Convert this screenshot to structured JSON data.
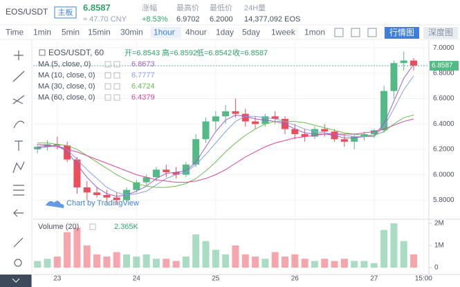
{
  "header": {
    "symbol": "EOS/USDT",
    "board": "主板",
    "price": "6.8587",
    "cny": "≈ 47.70 CNY",
    "stats": [
      {
        "label": "涨幅",
        "value": "+8.53%"
      },
      {
        "label": "最高价",
        "value": "6.9702"
      },
      {
        "label": "最低价",
        "value": "6.2000"
      },
      {
        "label": "24H量",
        "value": "14,377,092 EOS"
      }
    ]
  },
  "toolbar": {
    "intervals": [
      "Time",
      "1min",
      "5min",
      "15min",
      "30min",
      "1hour",
      "4hour",
      "1day",
      "5day",
      "1week",
      "1mon"
    ],
    "active": "1hour",
    "views": [
      "行情图",
      "深度图"
    ],
    "active_view": "行情图"
  },
  "chart_data": [
    {
      "type": "candlestick",
      "title": "EOS/USDT, 60",
      "info": [
        "开=6.8543",
        "高=6.8592",
        "低=6.8542",
        "收=6.8587"
      ],
      "watermark": "Chart by TradingView",
      "up_color": "#53b987",
      "down_color": "#eb4d5c",
      "x": [
        -6,
        -3,
        0,
        3,
        6,
        9,
        12,
        15,
        18,
        21,
        24,
        27,
        30,
        33,
        36,
        39,
        42,
        45,
        48,
        51,
        54,
        57,
        60,
        63,
        66,
        69,
        72,
        75,
        78,
        81,
        84,
        87,
        90,
        93,
        96,
        99,
        102,
        105,
        108
      ],
      "open": [
        6.2,
        6.22,
        6.24,
        6.23,
        6.12,
        5.9,
        5.86,
        5.84,
        5.82,
        5.8,
        5.88,
        5.94,
        5.98,
        6.04,
        6.02,
        6.0,
        6.08,
        6.28,
        6.42,
        6.46,
        6.5,
        6.48,
        6.42,
        6.4,
        6.46,
        6.44,
        6.36,
        6.32,
        6.3,
        6.36,
        6.34,
        6.28,
        6.26,
        6.3,
        6.32,
        6.35,
        6.66,
        6.88,
        6.9
      ],
      "high": [
        6.24,
        6.27,
        6.3,
        6.26,
        6.14,
        5.95,
        5.9,
        5.88,
        5.86,
        5.9,
        5.96,
        6.0,
        6.06,
        6.08,
        6.06,
        6.1,
        6.32,
        6.45,
        6.5,
        6.55,
        6.6,
        6.52,
        6.46,
        6.48,
        6.5,
        6.46,
        6.4,
        6.36,
        6.38,
        6.4,
        6.36,
        6.32,
        6.32,
        6.34,
        6.36,
        6.7,
        6.9,
        6.97,
        6.92
      ],
      "low": [
        6.17,
        6.19,
        6.2,
        6.1,
        5.85,
        5.8,
        5.82,
        5.78,
        5.76,
        5.79,
        5.86,
        5.91,
        5.95,
        5.98,
        5.97,
        5.98,
        6.06,
        6.25,
        6.35,
        6.4,
        6.45,
        6.38,
        6.36,
        6.38,
        6.4,
        6.32,
        6.28,
        6.26,
        6.28,
        6.3,
        6.26,
        6.22,
        6.2,
        6.27,
        6.29,
        6.33,
        6.6,
        6.82,
        6.82
      ],
      "close": [
        6.22,
        6.24,
        6.23,
        6.12,
        5.9,
        5.86,
        5.84,
        5.82,
        5.8,
        5.88,
        5.94,
        5.98,
        6.04,
        6.02,
        6.0,
        6.08,
        6.28,
        6.42,
        6.46,
        6.5,
        6.48,
        6.42,
        6.4,
        6.46,
        6.44,
        6.36,
        6.32,
        6.3,
        6.36,
        6.34,
        6.28,
        6.26,
        6.3,
        6.32,
        6.35,
        6.66,
        6.88,
        6.9,
        6.86
      ],
      "series": [
        {
          "name": "MA (5, close, 0)",
          "color": "#9c5fc9",
          "value_label": "6.8673",
          "values": [
            6.21,
            6.22,
            6.23,
            6.18,
            6.08,
            5.98,
            5.9,
            5.85,
            5.83,
            5.84,
            5.87,
            5.91,
            5.97,
            6.01,
            6.02,
            6.03,
            6.1,
            6.22,
            6.34,
            6.43,
            6.47,
            6.46,
            6.44,
            6.43,
            6.42,
            6.4,
            6.36,
            6.33,
            6.32,
            6.32,
            6.31,
            6.29,
            6.29,
            6.3,
            6.31,
            6.4,
            6.58,
            6.76,
            6.87
          ]
        },
        {
          "name": "MA (10, close, 0)",
          "color": "#8c9fe0",
          "value_label": "6.7777",
          "values": [
            6.22,
            6.23,
            6.23,
            6.2,
            6.12,
            6.04,
            5.97,
            5.9,
            5.86,
            5.84,
            5.85,
            5.87,
            5.92,
            5.97,
            6.0,
            6.02,
            6.08,
            6.16,
            6.25,
            6.34,
            6.42,
            6.46,
            6.46,
            6.45,
            6.44,
            6.42,
            6.39,
            6.36,
            6.34,
            6.33,
            6.32,
            6.31,
            6.3,
            6.3,
            6.3,
            6.38,
            6.52,
            6.67,
            6.78
          ]
        },
        {
          "name": "MA (30, close, 0)",
          "color": "#6cbf4c",
          "value_label": "6.4724",
          "values": [
            6.25,
            6.25,
            6.24,
            6.23,
            6.2,
            6.15,
            6.1,
            6.05,
            6.0,
            5.96,
            5.93,
            5.91,
            5.9,
            5.9,
            5.91,
            5.93,
            5.97,
            6.03,
            6.1,
            6.18,
            6.25,
            6.31,
            6.36,
            6.4,
            6.42,
            6.42,
            6.42,
            6.41,
            6.39,
            6.37,
            6.35,
            6.33,
            6.32,
            6.31,
            6.31,
            6.34,
            6.4,
            6.45,
            6.47
          ]
        },
        {
          "name": "MA (60, close, 0)",
          "color": "#d9479a",
          "value_label": "6.4379",
          "values": [
            6.24,
            6.23,
            6.22,
            6.2,
            6.18,
            6.15,
            6.12,
            6.09,
            6.06,
            6.03,
            6.0,
            5.98,
            5.96,
            5.95,
            5.94,
            5.94,
            5.95,
            5.97,
            6.0,
            6.04,
            6.09,
            6.14,
            6.18,
            6.22,
            6.25,
            6.27,
            6.29,
            6.3,
            6.31,
            6.32,
            6.32,
            6.32,
            6.32,
            6.33,
            6.34,
            6.36,
            6.39,
            6.42,
            6.44
          ]
        }
      ],
      "last": {
        "value": 6.8587,
        "label": "6.8587"
      },
      "xlim": [
        -7.3,
        112.6
      ],
      "xticks": [
        {
          "value": 0,
          "label": "23"
        },
        {
          "value": 24,
          "label": "24"
        },
        {
          "value": 48,
          "label": "25"
        },
        {
          "value": 72,
          "label": "26"
        },
        {
          "value": 96,
          "label": "27"
        },
        {
          "value": 111,
          "label": "15:00"
        }
      ],
      "ylim": [
        5.66,
        7.05
      ],
      "yticks": [
        {
          "value": 5.8,
          "label": "5.8000"
        },
        {
          "value": 6.0,
          "label": "6.0000"
        },
        {
          "value": 6.2,
          "label": "6.2000"
        },
        {
          "value": 6.4,
          "label": "6.4000"
        },
        {
          "value": 6.6,
          "label": "6.6000"
        },
        {
          "value": 6.8,
          "label": "6.8000"
        },
        {
          "value": 7.0,
          "label": "7.0000"
        }
      ],
      "grid": true
    },
    {
      "type": "bar",
      "title": "Volume (20)",
      "value_label": "2.365K",
      "x": [
        -6,
        -3,
        0,
        3,
        6,
        9,
        12,
        15,
        18,
        21,
        24,
        27,
        30,
        33,
        36,
        39,
        42,
        45,
        48,
        51,
        54,
        57,
        60,
        63,
        66,
        69,
        72,
        75,
        78,
        81,
        84,
        87,
        90,
        93,
        96,
        99,
        102,
        105,
        108
      ],
      "values": [
        300000,
        400000,
        500000,
        1600000,
        1800000,
        1000000,
        600000,
        500000,
        700000,
        600000,
        500000,
        600000,
        400000,
        400000,
        300000,
        500000,
        1500000,
        1200000,
        800000,
        600000,
        1000000,
        600000,
        500000,
        400000,
        700000,
        500000,
        600000,
        400000,
        300000,
        400000,
        300000,
        400000,
        300000,
        300000,
        200000,
        1700000,
        2000000,
        1200000,
        600000
      ],
      "ylim": [
        -250000,
        2090000
      ],
      "yticks": [
        0,
        {
          "value": 1000000,
          "label": "1M"
        },
        {
          "value": 2000000,
          "label": "2M"
        }
      ]
    }
  ]
}
